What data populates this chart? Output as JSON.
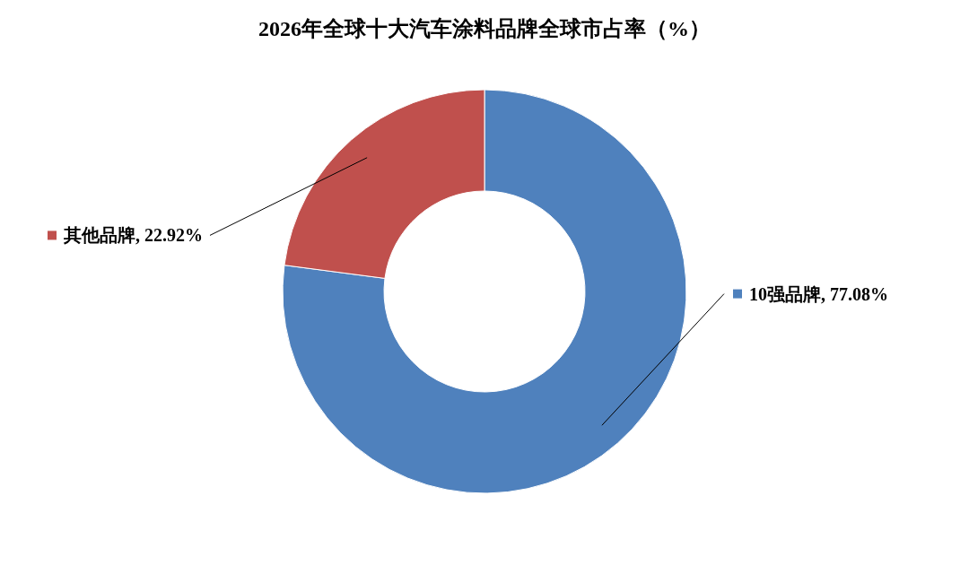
{
  "chart_data": {
    "type": "donut",
    "title": "2026年全球十大汽车涂料品牌全球市占率（%）",
    "categories": [
      "10强品牌",
      "其他品牌"
    ],
    "values": [
      77.08,
      22.92
    ],
    "value_labels": [
      ", 77.08%",
      ", 22.92%"
    ],
    "colors": [
      "#4f81bd",
      "#c0504d"
    ],
    "legend": "left"
  }
}
